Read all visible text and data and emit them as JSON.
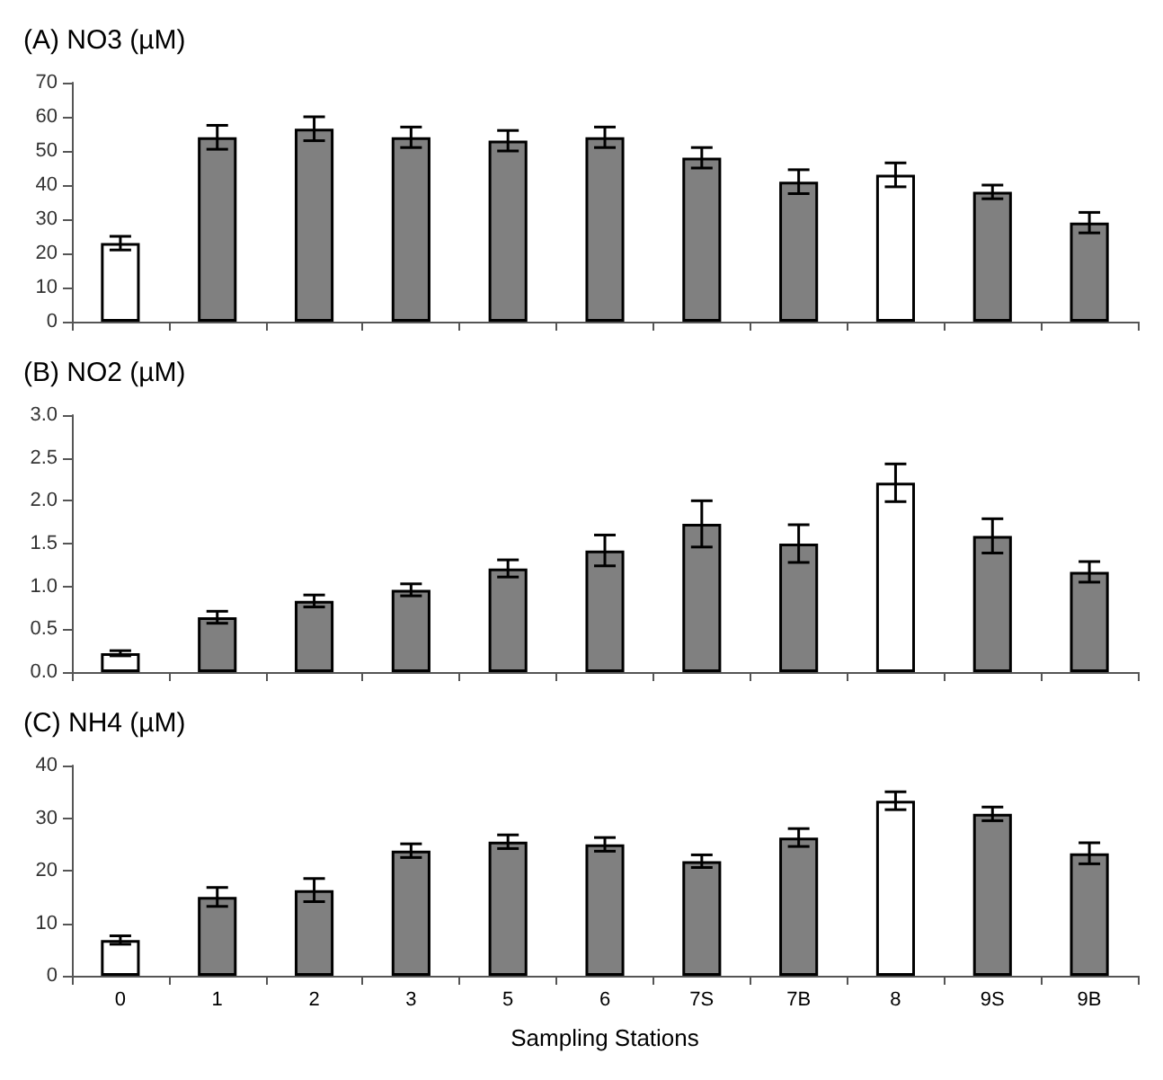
{
  "chart_data": [
    {
      "type": "bar",
      "title": "(A) NO3 (µM)",
      "categories": [
        null,
        null,
        null,
        null,
        null,
        null,
        null,
        null,
        null,
        null,
        null
      ],
      "values": [
        23,
        54,
        56.5,
        54,
        53,
        54,
        48,
        41,
        43,
        38,
        29
      ],
      "errors": [
        2,
        3.5,
        3.5,
        3,
        3,
        3,
        3,
        3.5,
        3.5,
        2,
        3
      ],
      "colors": [
        "#ffffff",
        "#808080",
        "#808080",
        "#808080",
        "#808080",
        "#808080",
        "#808080",
        "#808080",
        "#ffffff",
        "#808080",
        "#808080"
      ],
      "ylim": [
        0,
        70
      ],
      "yticks": [
        0,
        10,
        20,
        30,
        40,
        50,
        60,
        70
      ]
    },
    {
      "type": "bar",
      "title": "(B) NO2 (µM)",
      "categories": [
        null,
        null,
        null,
        null,
        null,
        null,
        null,
        null,
        null,
        null,
        null
      ],
      "values": [
        0.22,
        0.64,
        0.83,
        0.96,
        1.21,
        1.42,
        1.73,
        1.5,
        2.21,
        1.59,
        1.17
      ],
      "errors": [
        0.03,
        0.07,
        0.07,
        0.07,
        0.1,
        0.18,
        0.27,
        0.22,
        0.22,
        0.2,
        0.12
      ],
      "colors": [
        "#ffffff",
        "#808080",
        "#808080",
        "#808080",
        "#808080",
        "#808080",
        "#808080",
        "#808080",
        "#ffffff",
        "#808080",
        "#808080"
      ],
      "ylim": [
        0,
        3
      ],
      "yticks": [
        {
          "value": 0,
          "label": "0.0"
        },
        0.5,
        {
          "value": 1,
          "label": "1.0"
        },
        1.5,
        {
          "value": 2,
          "label": "2.0"
        },
        2.5,
        {
          "value": 3,
          "label": "3.0"
        }
      ]
    },
    {
      "type": "bar",
      "title": "(C) NH4 (µM)",
      "xlabel": "Sampling Stations",
      "categories": [
        "0",
        "1",
        "2",
        "3",
        "5",
        "6",
        "7S",
        "7B",
        "8",
        "9S",
        "9B"
      ],
      "values": [
        6.8,
        15,
        16.3,
        23.8,
        25.5,
        25,
        21.8,
        26.3,
        33.3,
        30.8,
        23.3
      ],
      "errors": [
        0.8,
        1.8,
        2.2,
        1.3,
        1.3,
        1.3,
        1.2,
        1.7,
        1.7,
        1.3,
        2
      ],
      "colors": [
        "#ffffff",
        "#808080",
        "#808080",
        "#808080",
        "#808080",
        "#808080",
        "#808080",
        "#808080",
        "#ffffff",
        "#808080",
        "#808080"
      ],
      "ylim": [
        0,
        40
      ],
      "yticks": [
        0,
        10,
        20,
        30,
        40
      ]
    }
  ]
}
